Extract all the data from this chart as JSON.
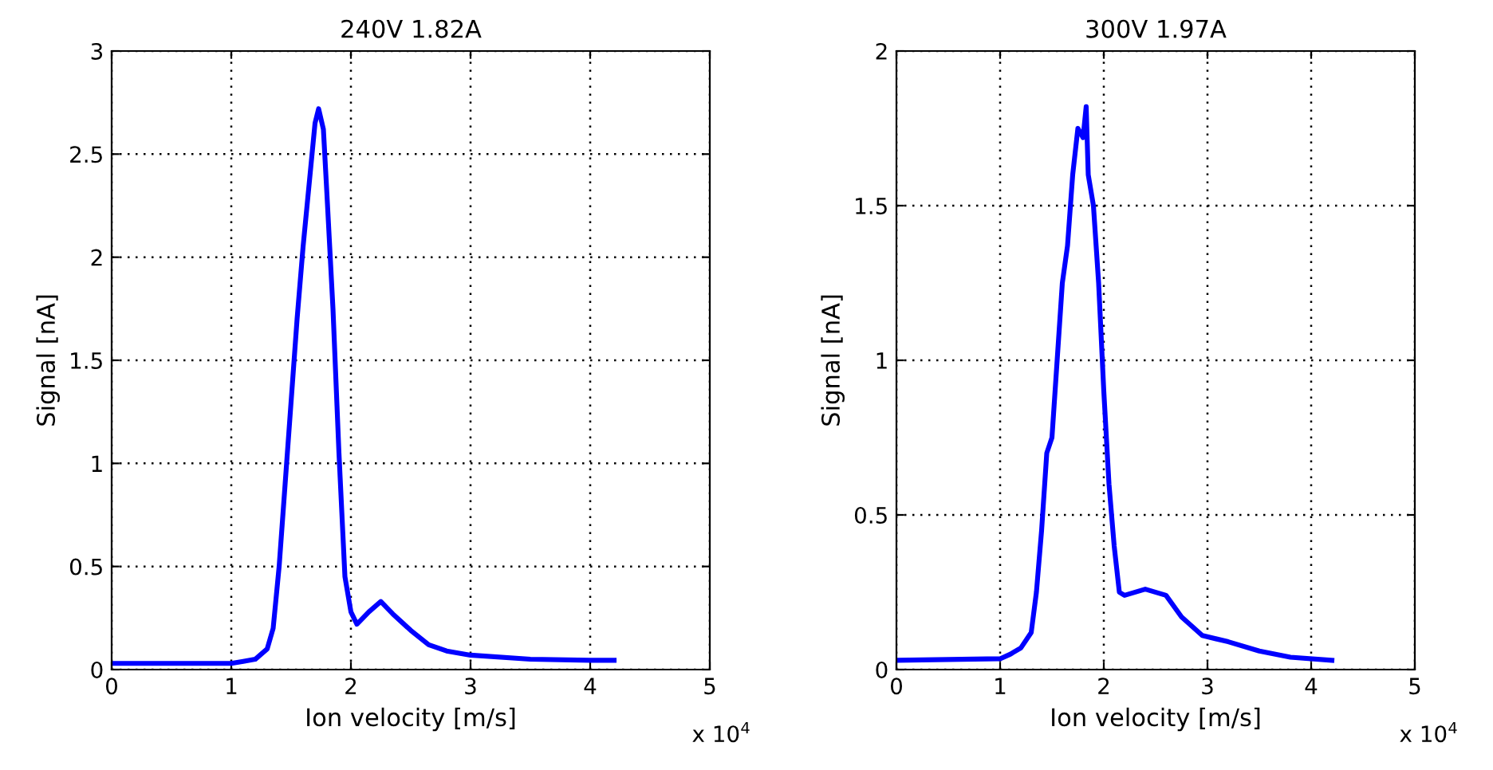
{
  "chart_data": [
    {
      "type": "line",
      "title": "240V 1.82A",
      "xlabel": "Ion velocity [m/s]",
      "ylabel": "Signal [nA]",
      "annotations": [
        "x 10$^{4}$"
      ],
      "xlim": [
        0,
        5
      ],
      "xticks": [
        0,
        1,
        2,
        3,
        4,
        5
      ],
      "ylim": [
        0,
        3
      ],
      "yticks": [
        0,
        0.5,
        1,
        1.5,
        2,
        2.5,
        3
      ],
      "grid": true,
      "line_style": "solid",
      "marker": "none",
      "series": [
        {
          "color": "#0000ff",
          "x": [
            0,
            1.0,
            1.1,
            1.2,
            1.3,
            1.35,
            1.4,
            1.45,
            1.5,
            1.55,
            1.6,
            1.65,
            1.7,
            1.73,
            1.77,
            1.8,
            1.85,
            1.9,
            1.95,
            2.0,
            2.05,
            2.15,
            2.25,
            2.35,
            2.5,
            2.65,
            2.8,
            3.0,
            3.5,
            4.0,
            4.2
          ],
          "values": [
            0.03,
            0.03,
            0.04,
            0.05,
            0.1,
            0.2,
            0.5,
            0.9,
            1.3,
            1.7,
            2.05,
            2.35,
            2.65,
            2.72,
            2.62,
            2.3,
            1.75,
            1.05,
            0.45,
            0.28,
            0.22,
            0.28,
            0.33,
            0.27,
            0.19,
            0.12,
            0.09,
            0.07,
            0.05,
            0.045,
            0.045
          ]
        }
      ]
    },
    {
      "type": "line",
      "title": "300V 1.97A",
      "xlabel": "Ion velocity [m/s]",
      "ylabel": "Signal [nA]",
      "annotations": [
        "x 10$^{4}$"
      ],
      "xlim": [
        0,
        5
      ],
      "xticks": [
        0,
        1,
        2,
        3,
        4,
        5
      ],
      "ylim": [
        0,
        2
      ],
      "yticks": [
        0,
        0.5,
        1,
        1.5,
        2
      ],
      "grid": true,
      "line_style": "solid",
      "marker": "none",
      "series": [
        {
          "color": "#0000ff",
          "x": [
            0,
            1.0,
            1.1,
            1.2,
            1.3,
            1.35,
            1.4,
            1.45,
            1.5,
            1.55,
            1.6,
            1.65,
            1.7,
            1.75,
            1.8,
            1.83,
            1.85,
            1.9,
            1.95,
            2.0,
            2.05,
            2.1,
            2.15,
            2.2,
            2.4,
            2.6,
            2.75,
            2.95,
            3.2,
            3.5,
            3.8,
            4.2
          ],
          "values": [
            0.03,
            0.035,
            0.05,
            0.07,
            0.12,
            0.25,
            0.45,
            0.7,
            0.75,
            1.0,
            1.25,
            1.37,
            1.6,
            1.75,
            1.72,
            1.82,
            1.6,
            1.5,
            1.25,
            0.9,
            0.6,
            0.4,
            0.25,
            0.24,
            0.26,
            0.24,
            0.17,
            0.11,
            0.09,
            0.06,
            0.04,
            0.03
          ]
        }
      ]
    }
  ]
}
